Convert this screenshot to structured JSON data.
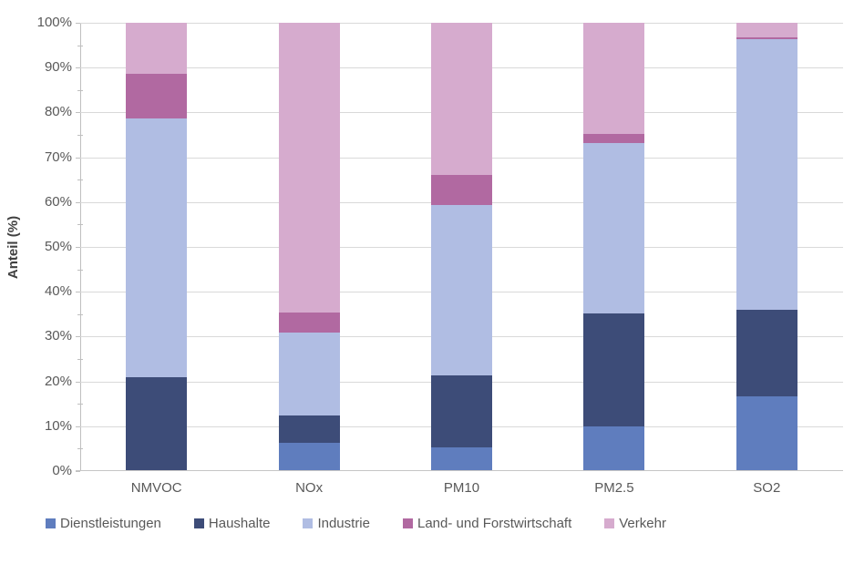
{
  "chart_data": {
    "type": "bar",
    "stacked": true,
    "percent_stacked": true,
    "title": "",
    "xlabel": "",
    "ylabel": "Anteil (%)",
    "ylim": [
      0,
      100
    ],
    "grid": "horizontal",
    "legend_position": "bottom",
    "categories": [
      "NMVOC",
      "NOx",
      "PM10",
      "PM2.5",
      "SO2"
    ],
    "series": [
      {
        "name": "Dienstleistungen",
        "color": "#5F7DBE",
        "values": [
          0.0,
          6.3,
          5.3,
          10.0,
          16.7
        ]
      },
      {
        "name": "Haushalte",
        "color": "#3D4C78",
        "values": [
          21.0,
          6.2,
          16.0,
          25.2,
          19.3
        ]
      },
      {
        "name": "Industrie",
        "color": "#B0BDE3",
        "values": [
          57.6,
          18.3,
          38.0,
          38.0,
          60.3
        ]
      },
      {
        "name": "Land- und Forstwirtschaft",
        "color": "#B169A1",
        "values": [
          10.1,
          4.6,
          6.8,
          2.1,
          0.5
        ]
      },
      {
        "name": "Verkehr",
        "color": "#D6ABCE",
        "values": [
          11.3,
          64.6,
          33.9,
          24.7,
          3.2
        ]
      }
    ],
    "y_ticks": [
      "0%",
      "10%",
      "20%",
      "30%",
      "40%",
      "50%",
      "60%",
      "70%",
      "80%",
      "90%",
      "100%"
    ],
    "y_tick_step": 10,
    "y_minor_tick_step": 5,
    "colors": {
      "gridline": "#d9d9d9",
      "axis_line": "#bfbfbf",
      "tick_text": "#595959",
      "axis_title_text": "#404040",
      "background": "#ffffff"
    }
  }
}
